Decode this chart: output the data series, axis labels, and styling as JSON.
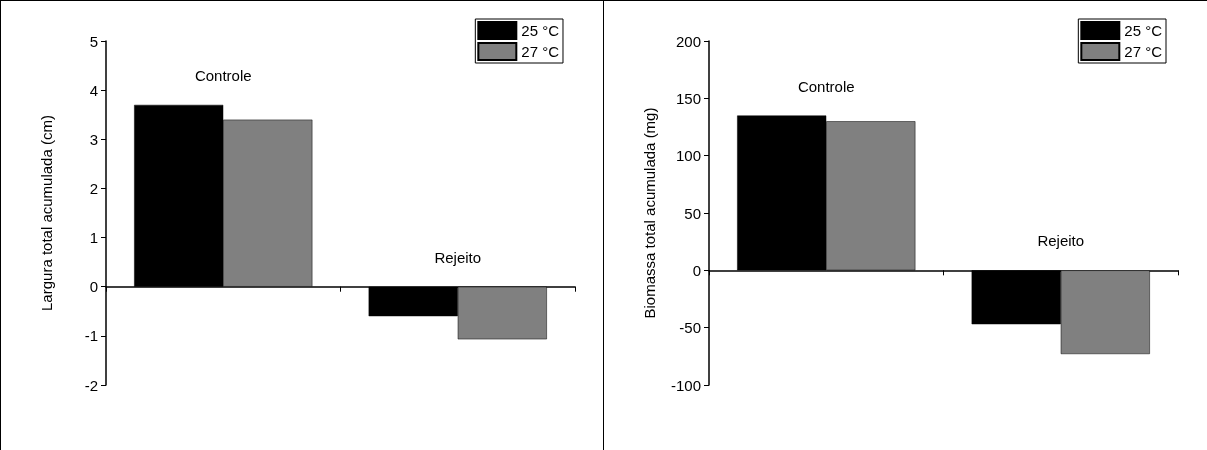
{
  "chart_data": [
    {
      "type": "bar",
      "ylabel": "Largura total acumulada (cm)",
      "categories": [
        "Controle",
        "Rejeito"
      ],
      "series": [
        {
          "name": "25 °C",
          "color": "#000000",
          "values": [
            3.7,
            -0.6
          ]
        },
        {
          "name": "27 °C",
          "color": "#808080",
          "values": [
            3.4,
            -1.07
          ]
        }
      ],
      "ylim": [
        -2,
        5
      ],
      "yticks": [
        -2,
        -1,
        0,
        1,
        2,
        3,
        4,
        5
      ],
      "legend": "top right"
    },
    {
      "type": "bar",
      "ylabel": "Biomassa total acumulada (mg)",
      "categories": [
        "Controle",
        "Rejeito"
      ],
      "series": [
        {
          "name": "25 °C",
          "color": "#000000",
          "values": [
            135,
            -47
          ]
        },
        {
          "name": "27 °C",
          "color": "#808080",
          "values": [
            130,
            -73
          ]
        }
      ],
      "ylim": [
        -100,
        200
      ],
      "yticks": [
        -100,
        -50,
        0,
        50,
        100,
        150,
        200
      ],
      "legend": "top right"
    }
  ]
}
